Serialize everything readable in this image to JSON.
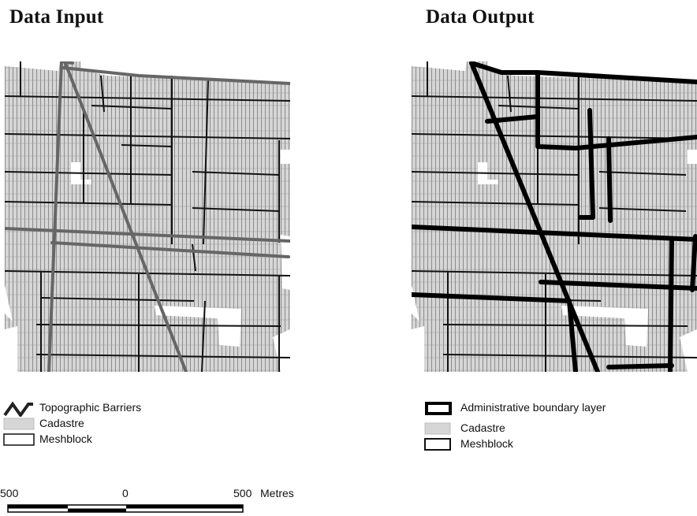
{
  "panels": {
    "left": {
      "title": "Data Input",
      "legend": [
        {
          "icon": "topographic-barrier-line-icon",
          "label": "Topographic Barriers"
        },
        {
          "icon": "cadastre-fill-icon",
          "label": "Cadastre"
        },
        {
          "icon": "meshblock-outline-icon",
          "label": "Meshblock"
        }
      ]
    },
    "right": {
      "title": "Data Output",
      "legend": [
        {
          "icon": "administrative-boundary-icon",
          "label": "Administrative boundary layer"
        },
        {
          "icon": "cadastre-fill-icon",
          "label": "Cadastre"
        },
        {
          "icon": "meshblock-outline-icon",
          "label": "Meshblock"
        }
      ]
    }
  },
  "scale_bar": {
    "left_label": "500",
    "center_label": "0",
    "right_label": "500",
    "unit": "Metres"
  },
  "colors": {
    "cadastre_fill": "#d6d6d6",
    "parcel_line": "#777777",
    "meshblock_line": "#111111",
    "topographic_barrier": "#666666",
    "administrative_boundary": "#000000"
  }
}
